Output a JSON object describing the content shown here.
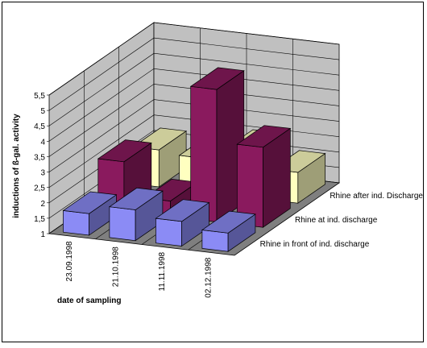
{
  "chart_data": {
    "type": "bar",
    "subtype": "3d-column",
    "title": "",
    "xlabel": "date of sampling",
    "ylabel": "inductions of ß-gal. activity",
    "ylim": [
      1,
      5.5
    ],
    "y_ticks": [
      "1",
      "1,5",
      "2",
      "2,5",
      "3",
      "3,5",
      "4",
      "4,5",
      "5",
      "5,5"
    ],
    "categories": [
      "23.09.1998",
      "21.10.1998",
      "11.11.1998",
      "02.12.1998"
    ],
    "grid": true,
    "series": [
      {
        "name": "Rhine in front of ind. discharge",
        "color": "#8b8bf5",
        "values": [
          1.7,
          2.0,
          1.8,
          1.6
        ]
      },
      {
        "name": "Rhine at ind. discharge",
        "color": "#8a1a5e",
        "values": [
          2.6,
          1.5,
          5.3,
          3.6
        ]
      },
      {
        "name": "Rhine after ind. Discharge",
        "color": "#ffffc0",
        "values": [
          2.2,
          2.1,
          2.5,
          2.0
        ]
      }
    ]
  }
}
